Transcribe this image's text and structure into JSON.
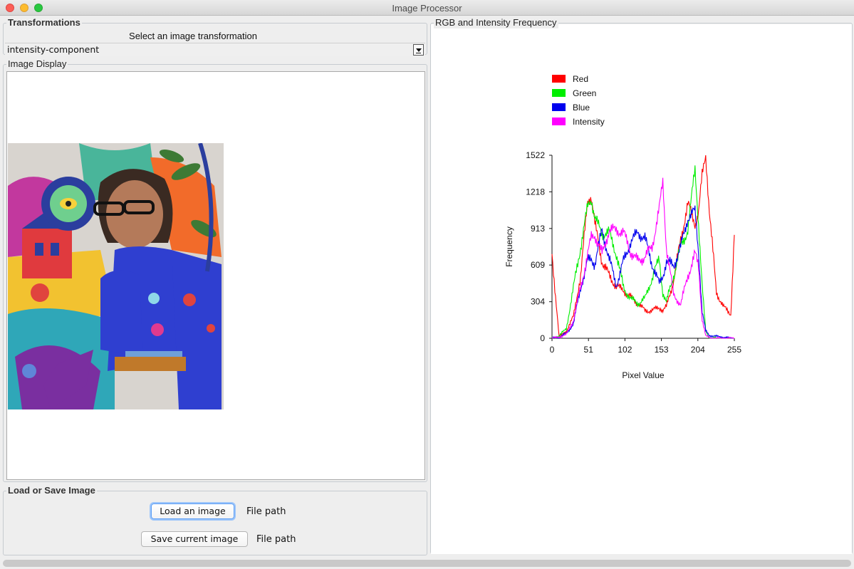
{
  "window": {
    "title": "Image Processor"
  },
  "transformations": {
    "legend": "Transformations",
    "select_label": "Select an image transformation",
    "selected": "intensity-component"
  },
  "image_display": {
    "legend": "Image Display",
    "image_icon": "painting-image"
  },
  "load_save": {
    "legend": "Load or Save Image",
    "load_label": "Load an image",
    "load_path": "File path",
    "save_label": "Save current image",
    "save_path": "File path"
  },
  "histogram": {
    "legend": "RGB and Intensity Frequency",
    "colors": {
      "red": "#ff0000",
      "green": "#00ee00",
      "blue": "#0000ee",
      "intensity": "#ff00ff"
    }
  },
  "chart_data": {
    "type": "line",
    "title": "",
    "xlabel": "Pixel Value",
    "ylabel": "Frequency",
    "xlim": [
      0,
      255
    ],
    "ylim": [
      0,
      1522
    ],
    "xticks": [
      0,
      51,
      102,
      153,
      204,
      255
    ],
    "yticks": [
      0,
      304,
      609,
      913,
      1218,
      1522
    ],
    "legend_position": "top-left",
    "grid": false,
    "x": [
      0,
      10,
      20,
      30,
      40,
      50,
      55,
      60,
      70,
      80,
      90,
      100,
      110,
      120,
      130,
      140,
      150,
      155,
      160,
      170,
      180,
      190,
      200,
      205,
      210,
      215,
      220,
      230,
      240,
      250,
      255
    ],
    "series": [
      {
        "name": "Red",
        "color": "#ff0000",
        "values": [
          700,
          10,
          60,
          180,
          520,
          1150,
          1180,
          950,
          640,
          520,
          430,
          400,
          340,
          290,
          230,
          230,
          260,
          230,
          260,
          480,
          820,
          1120,
          950,
          1050,
          1350,
          1530,
          1060,
          380,
          260,
          200,
          860
        ]
      },
      {
        "name": "Green",
        "color": "#00ee00",
        "values": [
          0,
          20,
          80,
          420,
          760,
          1100,
          1160,
          1000,
          870,
          880,
          700,
          420,
          330,
          290,
          330,
          500,
          660,
          380,
          300,
          520,
          760,
          900,
          1420,
          950,
          430,
          60,
          5,
          0,
          0,
          0,
          0
        ]
      },
      {
        "name": "Blue",
        "color": "#0000ee",
        "values": [
          0,
          10,
          40,
          120,
          420,
          640,
          660,
          620,
          900,
          660,
          440,
          640,
          800,
          880,
          830,
          620,
          450,
          520,
          640,
          600,
          760,
          1000,
          1060,
          720,
          220,
          60,
          25,
          15,
          10,
          0,
          0
        ]
      },
      {
        "name": "Intensity",
        "color": "#ff00ff",
        "values": [
          0,
          10,
          30,
          150,
          420,
          700,
          840,
          860,
          700,
          900,
          900,
          880,
          720,
          640,
          680,
          760,
          1080,
          1300,
          760,
          360,
          280,
          520,
          700,
          600,
          160,
          20,
          5,
          0,
          0,
          0,
          0
        ]
      }
    ]
  }
}
